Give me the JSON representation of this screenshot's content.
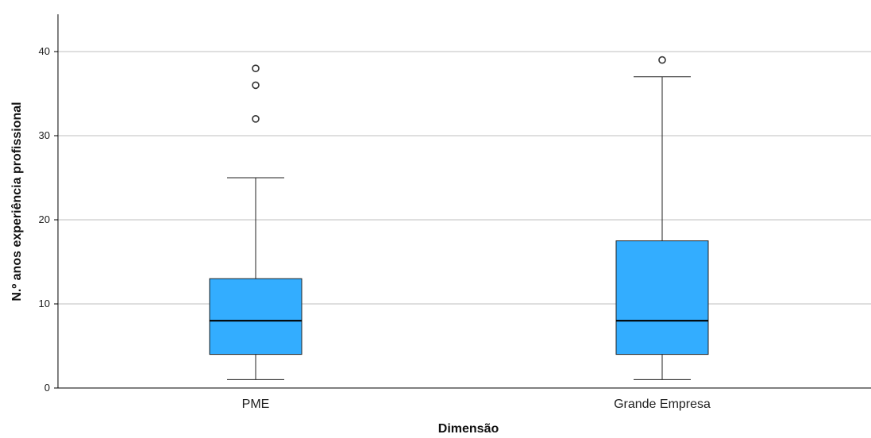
{
  "chart_data": {
    "type": "box",
    "xlabel": "Dimensão",
    "ylabel": "N.º anos experiência profissional",
    "ylim": [
      0,
      44
    ],
    "yticks": [
      0,
      10,
      20,
      30,
      40
    ],
    "grid": true,
    "categories": [
      "PME",
      "Grande Empresa"
    ],
    "boxes": [
      {
        "category": "PME",
        "whisker_low": 1,
        "q1": 4,
        "median": 8,
        "q3": 13,
        "whisker_high": 25,
        "outliers": [
          32,
          36,
          38
        ]
      },
      {
        "category": "Grande Empresa",
        "whisker_low": 1,
        "q1": 4,
        "median": 8,
        "q3": 17.5,
        "whisker_high": 37,
        "outliers": [
          39
        ]
      }
    ],
    "colors": {
      "box_fill": "#33adff",
      "box_stroke": "#222222",
      "median": "#000000",
      "grid": "#bfbfbf",
      "axis": "#000000"
    }
  }
}
